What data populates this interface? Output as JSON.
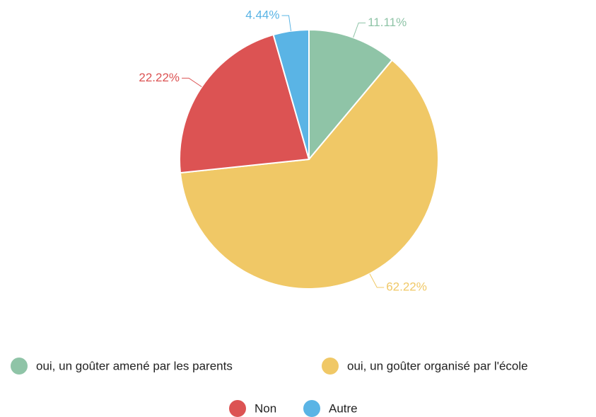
{
  "chart_data": {
    "type": "pie",
    "categories": [
      "oui, un goûter amené par les parents",
      "oui, un goûter organisé par l'école",
      "Non",
      "Autre"
    ],
    "values": [
      11.11,
      62.22,
      22.22,
      4.44
    ],
    "value_labels": [
      "11.11%",
      "62.22%",
      "22.22%",
      "4.44%"
    ],
    "colors": [
      "#8fc4a7",
      "#f0c866",
      "#dc5353",
      "#5ab4e5"
    ],
    "legend": "bottom"
  }
}
